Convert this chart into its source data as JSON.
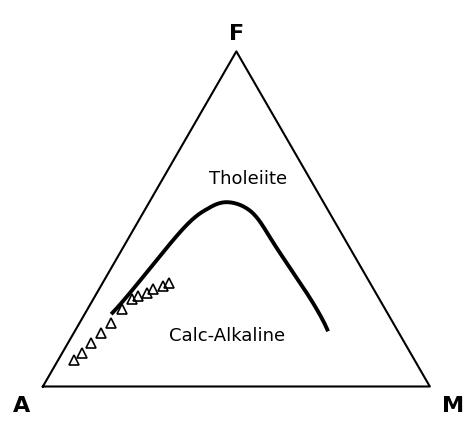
{
  "vertex_labels": {
    "F": {
      "text": "F",
      "fontsize": 16,
      "fontweight": "bold"
    },
    "A": {
      "text": "A",
      "fontsize": 16,
      "fontweight": "bold"
    },
    "M": {
      "text": "M",
      "fontsize": 16,
      "fontweight": "bold"
    }
  },
  "dividing_curve_afm": [
    [
      0.71,
      0.22,
      0.07
    ],
    [
      0.55,
      0.35,
      0.1
    ],
    [
      0.39,
      0.48,
      0.13
    ],
    [
      0.31,
      0.53,
      0.16
    ],
    [
      0.25,
      0.55,
      0.2
    ],
    [
      0.2,
      0.52,
      0.28
    ],
    [
      0.19,
      0.43,
      0.38
    ],
    [
      0.18,
      0.3,
      0.52
    ],
    [
      0.18,
      0.17,
      0.65
    ]
  ],
  "data_points_afm": [
    [
      0.88,
      0.08,
      0.04
    ],
    [
      0.85,
      0.1,
      0.05
    ],
    [
      0.81,
      0.13,
      0.06
    ],
    [
      0.77,
      0.16,
      0.07
    ],
    [
      0.73,
      0.19,
      0.08
    ],
    [
      0.68,
      0.23,
      0.09
    ],
    [
      0.64,
      0.26,
      0.1
    ],
    [
      0.62,
      0.27,
      0.11
    ],
    [
      0.59,
      0.28,
      0.13
    ],
    [
      0.57,
      0.29,
      0.14
    ],
    [
      0.54,
      0.3,
      0.16
    ],
    [
      0.52,
      0.31,
      0.17
    ]
  ],
  "label_tholeiite": {
    "text": "Tholeiite",
    "afm": [
      0.16,
      0.62,
      0.22
    ],
    "fontsize": 13
  },
  "label_calc_alkaline": {
    "text": "Calc-Alkaline",
    "afm": [
      0.45,
      0.15,
      0.4
    ],
    "fontsize": 13
  },
  "line_color": "#000000",
  "line_width": 2.8,
  "marker": "^",
  "marker_size": 7,
  "marker_facecolor": "none",
  "marker_edgecolor": "#000000",
  "marker_edgewidth": 1.2,
  "background_color": "#ffffff"
}
